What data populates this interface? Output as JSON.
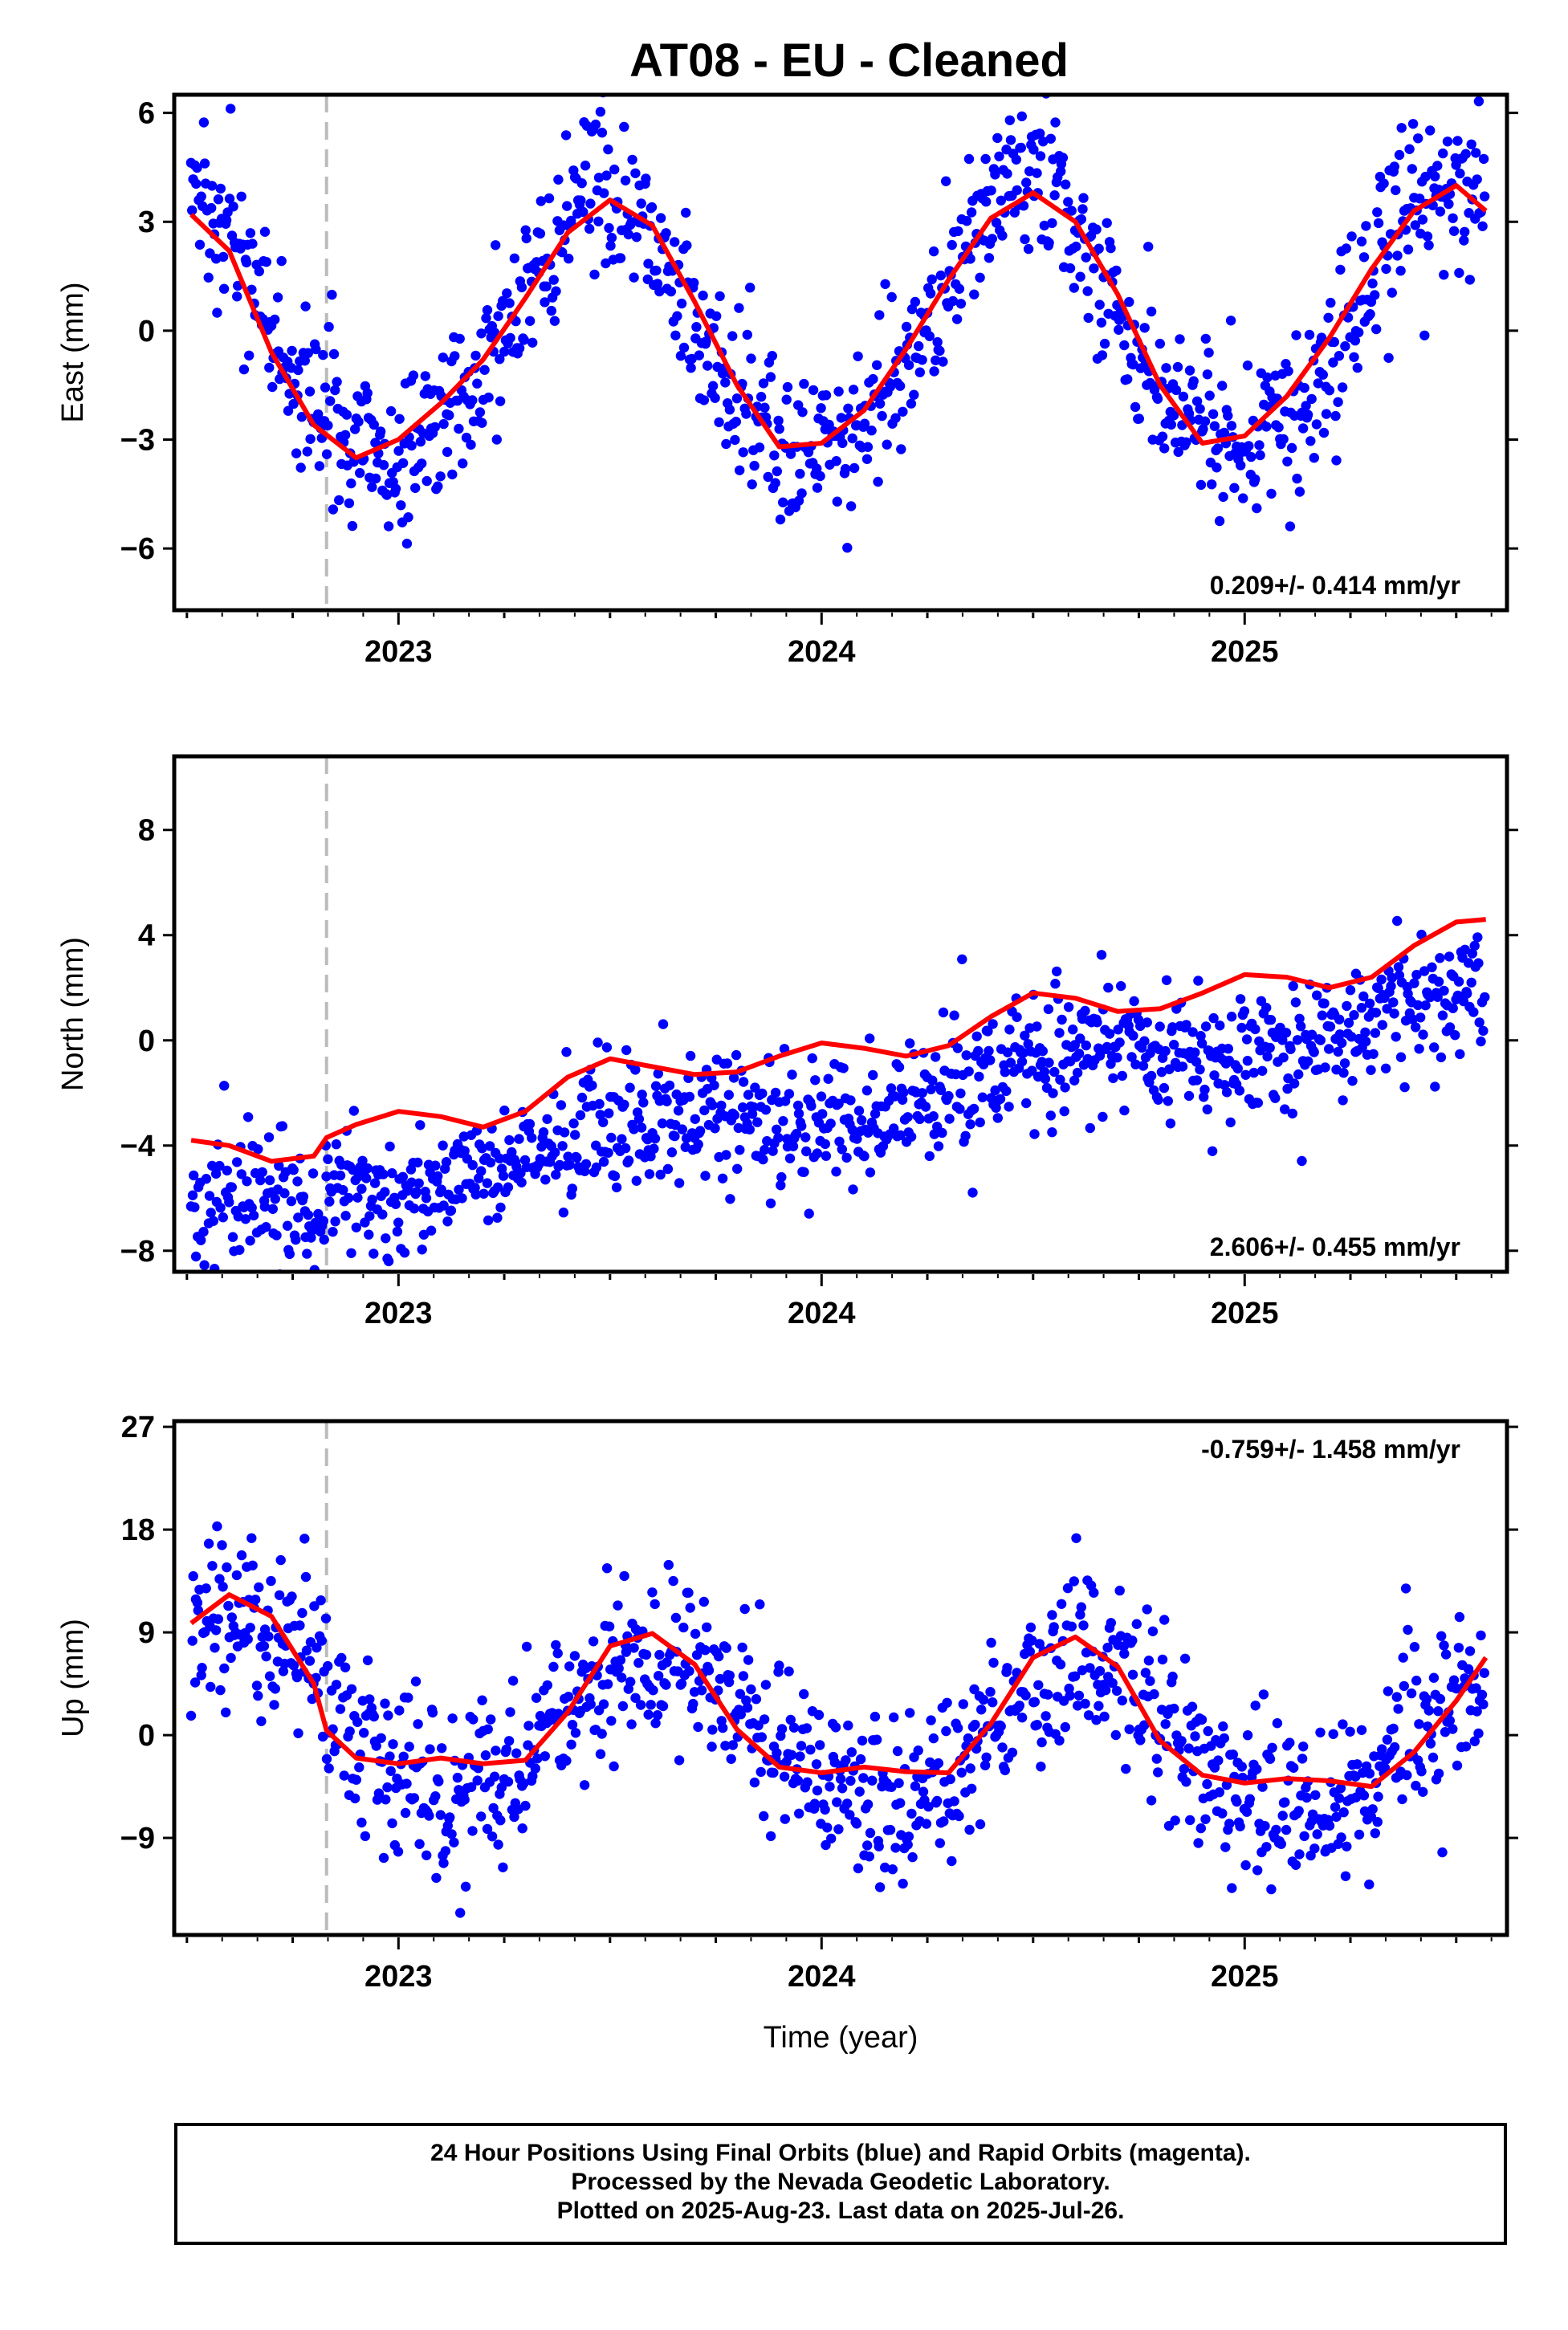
{
  "title": "AT08  - EU - Cleaned",
  "footer": {
    "line1": "24 Hour Positions Using Final Orbits (blue) and Rapid Orbits (magenta).",
    "line2": "Processed by the Nevada Geodetic Laboratory.",
    "line3": "Plotted on 2025-Aug-23. Last data on 2025-Jul-26."
  },
  "colors": {
    "points": "#0000ff",
    "fit": "#ff0000",
    "event_line": "#bbbbbb"
  },
  "chart_data": [
    {
      "type": "scatter",
      "ylabel": "East (mm)",
      "xlabel": "",
      "xlim": [
        2022.47,
        2025.62
      ],
      "ylim": [
        -7.7,
        6.5
      ],
      "yticks": [
        -6,
        -3,
        0,
        3,
        6
      ],
      "xticks": [
        2023,
        2024,
        2025
      ],
      "event_line_x": 2022.83,
      "rate_label": "0.209+/- 0.414 mm/yr",
      "rate_position": "bottom-right",
      "model": {
        "trend": 0.209,
        "offset": 0.0,
        "amp": 3.55,
        "phase_peak": 2023.48,
        "amp2": 0.3,
        "noise": 1.1,
        "event_step": 0
      },
      "fit_curve": [
        [
          2022.51,
          3.2
        ],
        [
          2022.6,
          2.2
        ],
        [
          2022.7,
          -0.6
        ],
        [
          2022.8,
          -2.6
        ],
        [
          2022.9,
          -3.5
        ],
        [
          2023.0,
          -3.0
        ],
        [
          2023.1,
          -2.0
        ],
        [
          2023.2,
          -0.8
        ],
        [
          2023.3,
          0.9
        ],
        [
          2023.4,
          2.7
        ],
        [
          2023.5,
          3.6
        ],
        [
          2023.6,
          2.9
        ],
        [
          2023.7,
          0.8
        ],
        [
          2023.8,
          -1.5
        ],
        [
          2023.9,
          -3.2
        ],
        [
          2024.0,
          -3.1
        ],
        [
          2024.1,
          -2.2
        ],
        [
          2024.2,
          -0.5
        ],
        [
          2024.3,
          1.4
        ],
        [
          2024.4,
          3.1
        ],
        [
          2024.5,
          3.8
        ],
        [
          2024.6,
          3.0
        ],
        [
          2024.7,
          1.0
        ],
        [
          2024.8,
          -1.5
        ],
        [
          2024.9,
          -3.1
        ],
        [
          2025.0,
          -2.9
        ],
        [
          2025.1,
          -1.8
        ],
        [
          2025.2,
          -0.2
        ],
        [
          2025.3,
          1.7
        ],
        [
          2025.4,
          3.3
        ],
        [
          2025.5,
          4.0
        ],
        [
          2025.57,
          3.3
        ]
      ]
    },
    {
      "type": "scatter",
      "ylabel": "North (mm)",
      "xlabel": "",
      "xlim": [
        2022.47,
        2025.62
      ],
      "ylim": [
        -8.8,
        10.8
      ],
      "yticks": [
        -8,
        -4,
        0,
        4,
        8
      ],
      "xticks": [
        2023,
        2024,
        2025
      ],
      "event_line_x": 2022.83,
      "rate_label": "2.606+/- 0.455 mm/yr",
      "rate_position": "bottom-right",
      "model": {
        "trend": 2.606,
        "offset": -2.6,
        "amp": 0.6,
        "phase_peak": 2023.55,
        "amp2": 0.0,
        "noise": 1.2,
        "event_step": 0.5
      },
      "fit_curve": [
        [
          2022.51,
          -3.8
        ],
        [
          2022.6,
          -4.0
        ],
        [
          2022.7,
          -4.6
        ],
        [
          2022.8,
          -4.4
        ],
        [
          2022.83,
          -3.7
        ],
        [
          2022.9,
          -3.2
        ],
        [
          2023.0,
          -2.7
        ],
        [
          2023.1,
          -2.9
        ],
        [
          2023.2,
          -3.3
        ],
        [
          2023.3,
          -2.7
        ],
        [
          2023.4,
          -1.4
        ],
        [
          2023.5,
          -0.7
        ],
        [
          2023.6,
          -1.0
        ],
        [
          2023.7,
          -1.3
        ],
        [
          2023.8,
          -1.2
        ],
        [
          2023.9,
          -0.6
        ],
        [
          2024.0,
          -0.1
        ],
        [
          2024.1,
          -0.3
        ],
        [
          2024.2,
          -0.6
        ],
        [
          2024.3,
          -0.2
        ],
        [
          2024.4,
          0.9
        ],
        [
          2024.5,
          1.8
        ],
        [
          2024.6,
          1.6
        ],
        [
          2024.7,
          1.1
        ],
        [
          2024.8,
          1.2
        ],
        [
          2024.9,
          1.8
        ],
        [
          2025.0,
          2.5
        ],
        [
          2025.1,
          2.4
        ],
        [
          2025.2,
          2.0
        ],
        [
          2025.3,
          2.4
        ],
        [
          2025.4,
          3.6
        ],
        [
          2025.5,
          4.5
        ],
        [
          2025.57,
          4.6
        ]
      ]
    },
    {
      "type": "scatter",
      "ylabel": "Up (mm)",
      "xlabel": "Time (year)",
      "xlim": [
        2022.47,
        2025.62
      ],
      "ylim": [
        -17.5,
        27.5
      ],
      "yticks": [
        -9,
        0,
        9,
        18,
        27
      ],
      "xticks": [
        2023,
        2024,
        2025
      ],
      "event_line_x": 2022.83,
      "rate_label": "-0.759+/- 1.458 mm/yr",
      "rate_position": "top-right",
      "model": {
        "trend": -0.759,
        "offset": 0.0,
        "amp": 6.0,
        "phase_peak": 2023.62,
        "amp2": 0.0,
        "noise": 3.8,
        "event_step": -3.0
      },
      "fit_curve": [
        [
          2022.51,
          9.8
        ],
        [
          2022.6,
          12.3
        ],
        [
          2022.7,
          10.4
        ],
        [
          2022.8,
          4.5
        ],
        [
          2022.83,
          0.4
        ],
        [
          2022.9,
          -2.0
        ],
        [
          2023.0,
          -2.5
        ],
        [
          2023.1,
          -2.0
        ],
        [
          2023.2,
          -2.5
        ],
        [
          2023.3,
          -2.2
        ],
        [
          2023.4,
          2.0
        ],
        [
          2023.5,
          7.8
        ],
        [
          2023.6,
          8.9
        ],
        [
          2023.7,
          6.2
        ],
        [
          2023.8,
          0.5
        ],
        [
          2023.9,
          -2.8
        ],
        [
          2024.0,
          -3.3
        ],
        [
          2024.1,
          -2.8
        ],
        [
          2024.2,
          -3.2
        ],
        [
          2024.3,
          -3.3
        ],
        [
          2024.4,
          1.0
        ],
        [
          2024.5,
          6.8
        ],
        [
          2024.6,
          8.6
        ],
        [
          2024.7,
          6.0
        ],
        [
          2024.8,
          -0.5
        ],
        [
          2024.9,
          -3.5
        ],
        [
          2025.0,
          -4.2
        ],
        [
          2025.1,
          -3.8
        ],
        [
          2025.2,
          -4.0
        ],
        [
          2025.3,
          -4.5
        ],
        [
          2025.4,
          -1.5
        ],
        [
          2025.5,
          3.0
        ],
        [
          2025.57,
          6.8
        ]
      ]
    }
  ]
}
